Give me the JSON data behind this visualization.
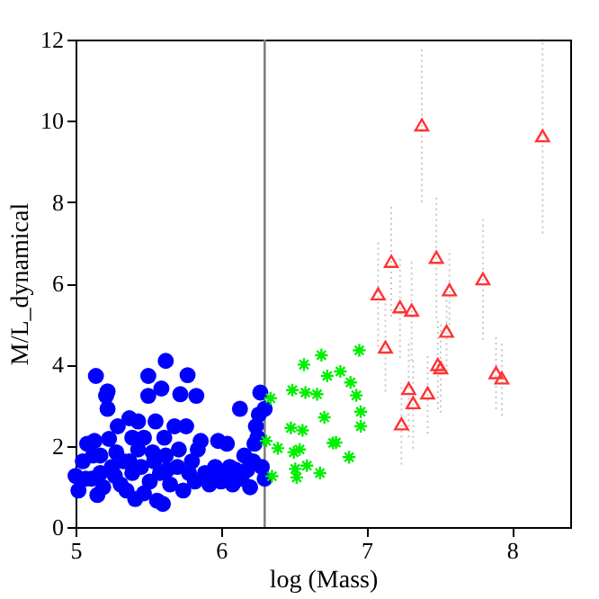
{
  "chart_data": {
    "type": "scatter",
    "xlabel": "log (Mass)",
    "ylabel": "M/L_dynamical",
    "xlim": [
      5,
      8.4
    ],
    "ylim": [
      0,
      12
    ],
    "xticks": [
      5,
      6,
      7,
      8
    ],
    "yticks": [
      0,
      2,
      4,
      6,
      8,
      10,
      12
    ],
    "grid": false,
    "ref_lines": [
      {
        "axis": "x",
        "value": 6.3,
        "color": "#808080"
      }
    ],
    "series": [
      {
        "color": "#0000ff",
        "marker": "circle",
        "x": [
          5.14,
          5.21,
          5.22,
          5.22,
          5.5,
          5.5,
          5.62,
          5.59,
          5.77,
          5.72,
          5.83,
          6.27,
          6.3,
          5.55,
          5.37,
          5.43,
          5.6,
          6.13,
          5.0,
          5.05,
          5.08,
          5.13,
          5.15,
          5.17,
          5.23,
          5.25,
          5.28,
          5.31,
          5.33,
          5.39,
          5.41,
          5.43,
          5.45,
          5.47,
          5.51,
          5.54,
          5.56,
          5.58,
          5.61,
          5.62,
          5.65,
          5.68,
          5.7,
          5.71,
          5.74,
          5.76,
          5.78,
          5.8,
          5.84,
          5.86,
          5.89,
          5.92,
          5.96,
          5.98,
          6.0,
          6.04,
          6.06,
          6.08,
          6.1,
          6.16,
          6.2,
          6.22,
          6.23,
          6.24,
          6.26,
          6.28,
          6.3,
          6.25,
          5.02,
          5.11,
          5.19,
          5.27,
          5.35,
          5.37,
          5.29,
          5.53,
          5.63,
          5.47,
          5.82,
          5.94,
          6.02,
          6.14,
          6.18,
          5.17,
          5.39,
          5.07,
          5.12
        ],
        "values": [
          3.72,
          3.23,
          3.34,
          2.91,
          3.72,
          3.23,
          4.09,
          3.41,
          3.74,
          3.27,
          3.23,
          3.31,
          2.91,
          2.6,
          2.68,
          2.6,
          0.57,
          2.91,
          1.26,
          1.62,
          2.05,
          2.12,
          0.79,
          1.33,
          2.17,
          1.48,
          1.84,
          1.05,
          1.62,
          1.33,
          0.69,
          1.91,
          1.48,
          2.2,
          1.12,
          1.62,
          0.65,
          1.33,
          2.2,
          1.76,
          1.05,
          2.48,
          1.48,
          1.91,
          0.9,
          2.48,
          1.33,
          1.62,
          1.91,
          2.12,
          1.33,
          1.05,
          1.48,
          2.12,
          1.12,
          2.05,
          1.48,
          1.05,
          1.41,
          1.76,
          0.98,
          1.62,
          2.05,
          2.48,
          2.77,
          1.48,
          1.19,
          2.2,
          0.9,
          1.19,
          0.98,
          1.26,
          0.9,
          1.62,
          2.48,
          1.84,
          1.41,
          0.83,
          1.12,
          1.33,
          1.26,
          1.19,
          1.41,
          1.76,
          2.2,
          1.19,
          1.76
        ]
      },
      {
        "color": "#00ee00",
        "marker": "cross",
        "x": [
          6.34,
          6.31,
          6.39,
          6.35,
          6.49,
          6.48,
          6.5,
          6.54,
          6.51,
          6.52,
          6.57,
          6.58,
          6.56,
          6.59,
          6.66,
          6.68,
          6.69,
          6.73,
          6.71,
          6.77,
          6.79,
          6.82,
          6.88,
          6.89,
          6.93,
          6.95,
          6.96,
          6.96
        ],
        "values": [
          3.17,
          2.12,
          1.94,
          1.25,
          3.37,
          2.44,
          1.84,
          1.91,
          1.43,
          1.22,
          4.0,
          3.31,
          2.38,
          1.51,
          3.27,
          1.33,
          4.23,
          3.72,
          2.7,
          2.07,
          2.08,
          3.83,
          1.72,
          3.56,
          3.24,
          4.35,
          2.84,
          2.48
        ]
      },
      {
        "color": "#ff3333",
        "marker": "triangle",
        "x": [
          7.08,
          7.17,
          7.23,
          7.31,
          7.13,
          7.38,
          7.48,
          7.57,
          7.55,
          7.49,
          7.51,
          7.8,
          7.29,
          7.42,
          7.32,
          7.24,
          7.89,
          7.93,
          8.21
        ],
        "values": [
          5.74,
          6.54,
          5.42,
          5.34,
          4.43,
          9.9,
          6.64,
          5.84,
          4.82,
          4.0,
          3.92,
          6.11,
          3.41,
          3.3,
          3.06,
          2.54,
          3.8,
          3.67,
          9.63
        ],
        "errors": [
          1.3,
          1.36,
          1.25,
          1.25,
          1.1,
          1.9,
          1.5,
          1.0,
          1.0,
          1.1,
          1.1,
          1.5,
          1.2,
          1.0,
          1.13,
          1.0,
          0.9,
          0.93,
          2.4
        ]
      }
    ]
  }
}
